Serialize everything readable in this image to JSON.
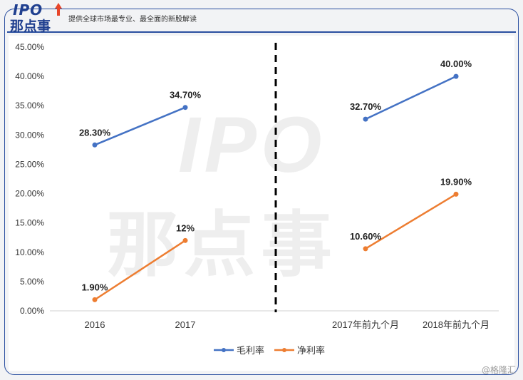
{
  "header": {
    "logo_top": "IPO",
    "logo_bottom": "那点事",
    "tagline": "提供全球市场最专业、最全面的新股解读"
  },
  "watermark": {
    "latin": "IPO",
    "cn": "那点事"
  },
  "source_mark": "@格隆汇",
  "colors": {
    "gross": "#4472c4",
    "net": "#ed7d31",
    "brand": "#1f3f8f"
  },
  "chart_data": {
    "type": "line",
    "categories": [
      "2016",
      "2017",
      "2017年前九个月",
      "2018年前九个月"
    ],
    "ylim": [
      0,
      45
    ],
    "yticks": [
      "0.00%",
      "5.00%",
      "10.00%",
      "15.00%",
      "20.00%",
      "25.00%",
      "30.00%",
      "35.00%",
      "40.00%",
      "45.00%"
    ],
    "segments": [
      [
        0,
        1
      ],
      [
        2,
        3
      ]
    ],
    "divider_after_category": 1,
    "series": [
      {
        "name": "毛利率",
        "values": [
          28.3,
          34.7,
          32.7,
          40.0
        ],
        "labels": [
          "28.30%",
          "34.70%",
          "32.70%",
          "40.00%"
        ],
        "color": "#4472c4"
      },
      {
        "name": "净利率",
        "values": [
          1.9,
          12.0,
          10.6,
          19.9
        ],
        "labels": [
          "1.90%",
          "12%",
          "10.60%",
          "19.90%"
        ],
        "color": "#ed7d31"
      }
    ],
    "legend": "bottom-center",
    "grid": false
  }
}
